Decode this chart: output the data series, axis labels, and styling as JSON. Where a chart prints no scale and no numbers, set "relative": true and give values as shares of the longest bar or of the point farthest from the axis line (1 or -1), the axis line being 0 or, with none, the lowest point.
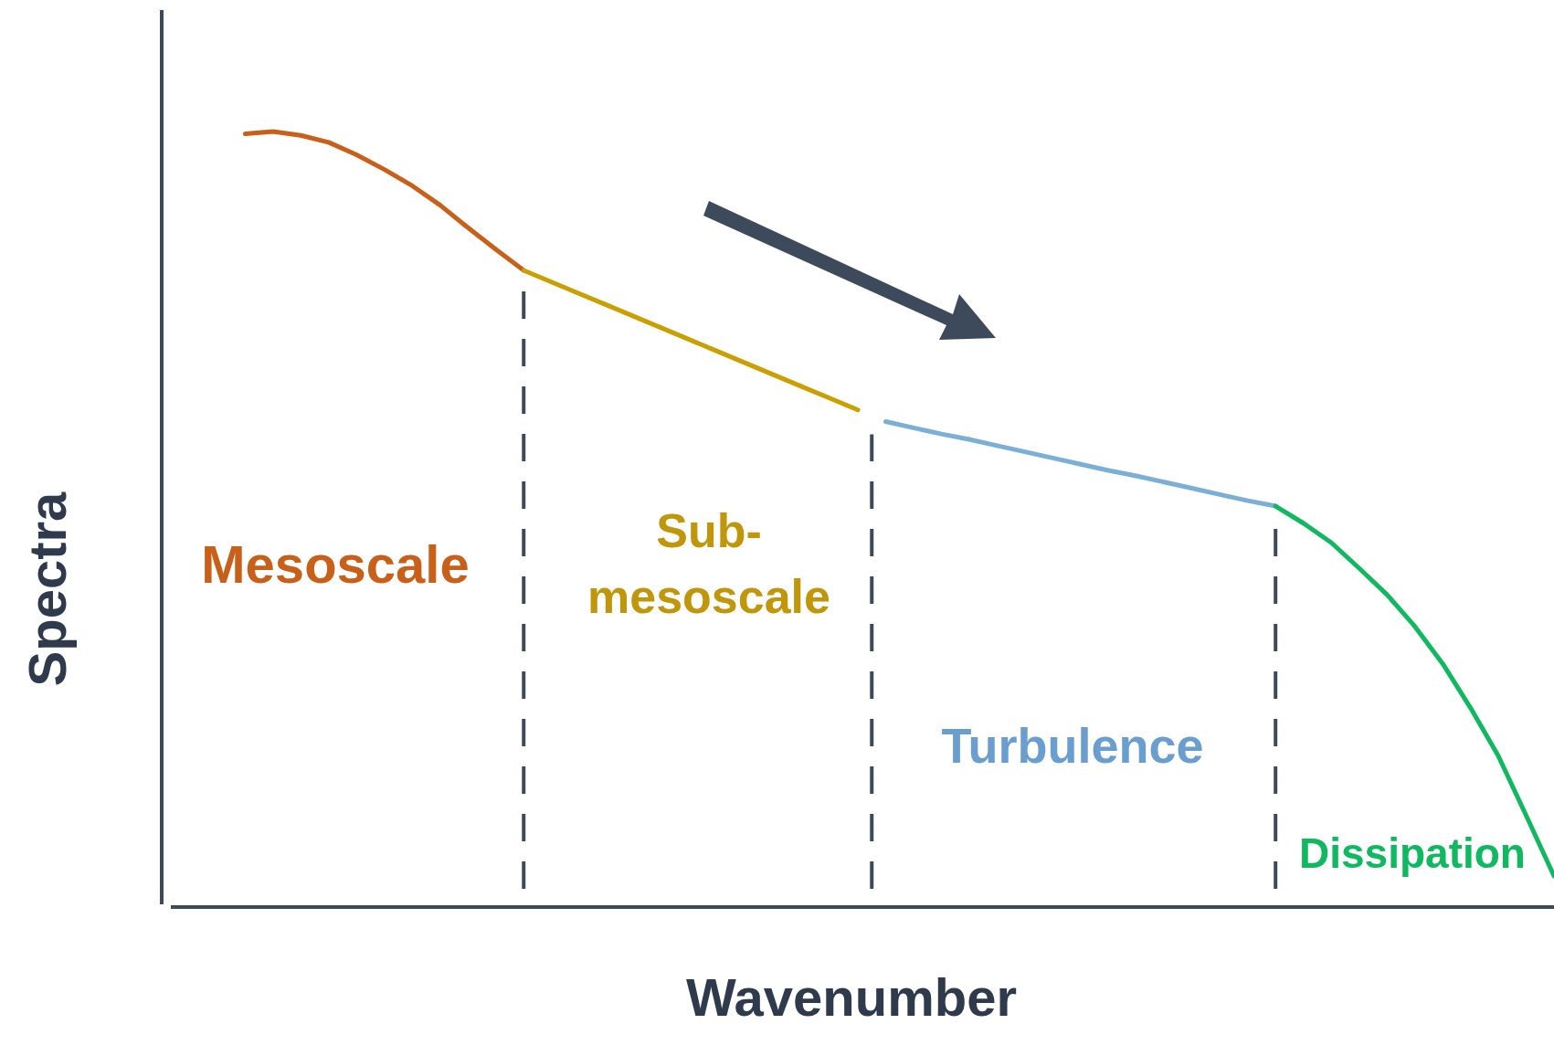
{
  "chart_data": {
    "type": "line",
    "relative": true,
    "xlabel": "Wavenumber",
    "ylabel": "Spectra",
    "marker": "none",
    "line_style": "solid",
    "categories": [
      null,
      null,
      null,
      null,
      null,
      null,
      null,
      null,
      null,
      null,
      null,
      null,
      null,
      null,
      null,
      null,
      null,
      null,
      null,
      null,
      null,
      null,
      null,
      null,
      null,
      null,
      null,
      null,
      null,
      null,
      null,
      null,
      null,
      null,
      null,
      null,
      null,
      null,
      null,
      null,
      null,
      null,
      null,
      null,
      null,
      null,
      null,
      null,
      null,
      null,
      null
    ],
    "series": [
      {
        "name": "Mesoscale",
        "color": "#c8601a",
        "values": [
          null,
          null,
          null,
          0.997,
          1,
          0.995,
          0.986,
          0.97,
          0.951,
          0.93,
          0.905,
          0.876,
          0.848,
          0.821,
          null,
          null,
          null,
          null,
          null,
          null,
          null,
          null,
          null,
          null,
          null,
          null,
          null,
          null,
          null,
          null,
          null,
          null,
          null,
          null,
          null,
          null,
          null,
          null,
          null,
          null,
          null,
          null,
          null,
          null,
          null,
          null,
          null,
          null,
          null,
          null,
          null
        ]
      },
      {
        "name": "Sub-mesoscale",
        "color": "#c9a000",
        "values": [
          null,
          null,
          null,
          null,
          null,
          null,
          null,
          null,
          null,
          null,
          null,
          null,
          null,
          0.821,
          0.806,
          0.791,
          0.776,
          0.761,
          0.746,
          0.731,
          0.716,
          0.701,
          0.686,
          0.671,
          0.656,
          0.641,
          null,
          null,
          null,
          null,
          null,
          null,
          null,
          null,
          null,
          null,
          null,
          null,
          null,
          null,
          null,
          null,
          null,
          null,
          null,
          null,
          null,
          null,
          null,
          null,
          null
        ]
      },
      {
        "name": "Turbulence",
        "color": "#7aafd6",
        "values": [
          null,
          null,
          null,
          null,
          null,
          null,
          null,
          null,
          null,
          null,
          null,
          null,
          null,
          null,
          null,
          null,
          null,
          null,
          null,
          null,
          null,
          null,
          null,
          null,
          null,
          null,
          0.626,
          0.618,
          0.61,
          0.603,
          0.595,
          0.587,
          0.579,
          0.571,
          0.563,
          0.556,
          0.548,
          0.54,
          0.532,
          0.524,
          0.517,
          null,
          null,
          null,
          null,
          null,
          null,
          null,
          null,
          null,
          null
        ]
      },
      {
        "name": "Dissipation",
        "color": "#10b860",
        "values": [
          null,
          null,
          null,
          null,
          null,
          null,
          null,
          null,
          null,
          null,
          null,
          null,
          null,
          null,
          null,
          null,
          null,
          null,
          null,
          null,
          null,
          null,
          null,
          null,
          null,
          null,
          null,
          null,
          null,
          null,
          null,
          null,
          null,
          null,
          null,
          null,
          null,
          null,
          null,
          null,
          0.517,
          0.495,
          0.47,
          0.437,
          0.403,
          0.362,
          0.314,
          0.257,
          0.195,
          0.118,
          0.04
        ]
      }
    ]
  }
}
